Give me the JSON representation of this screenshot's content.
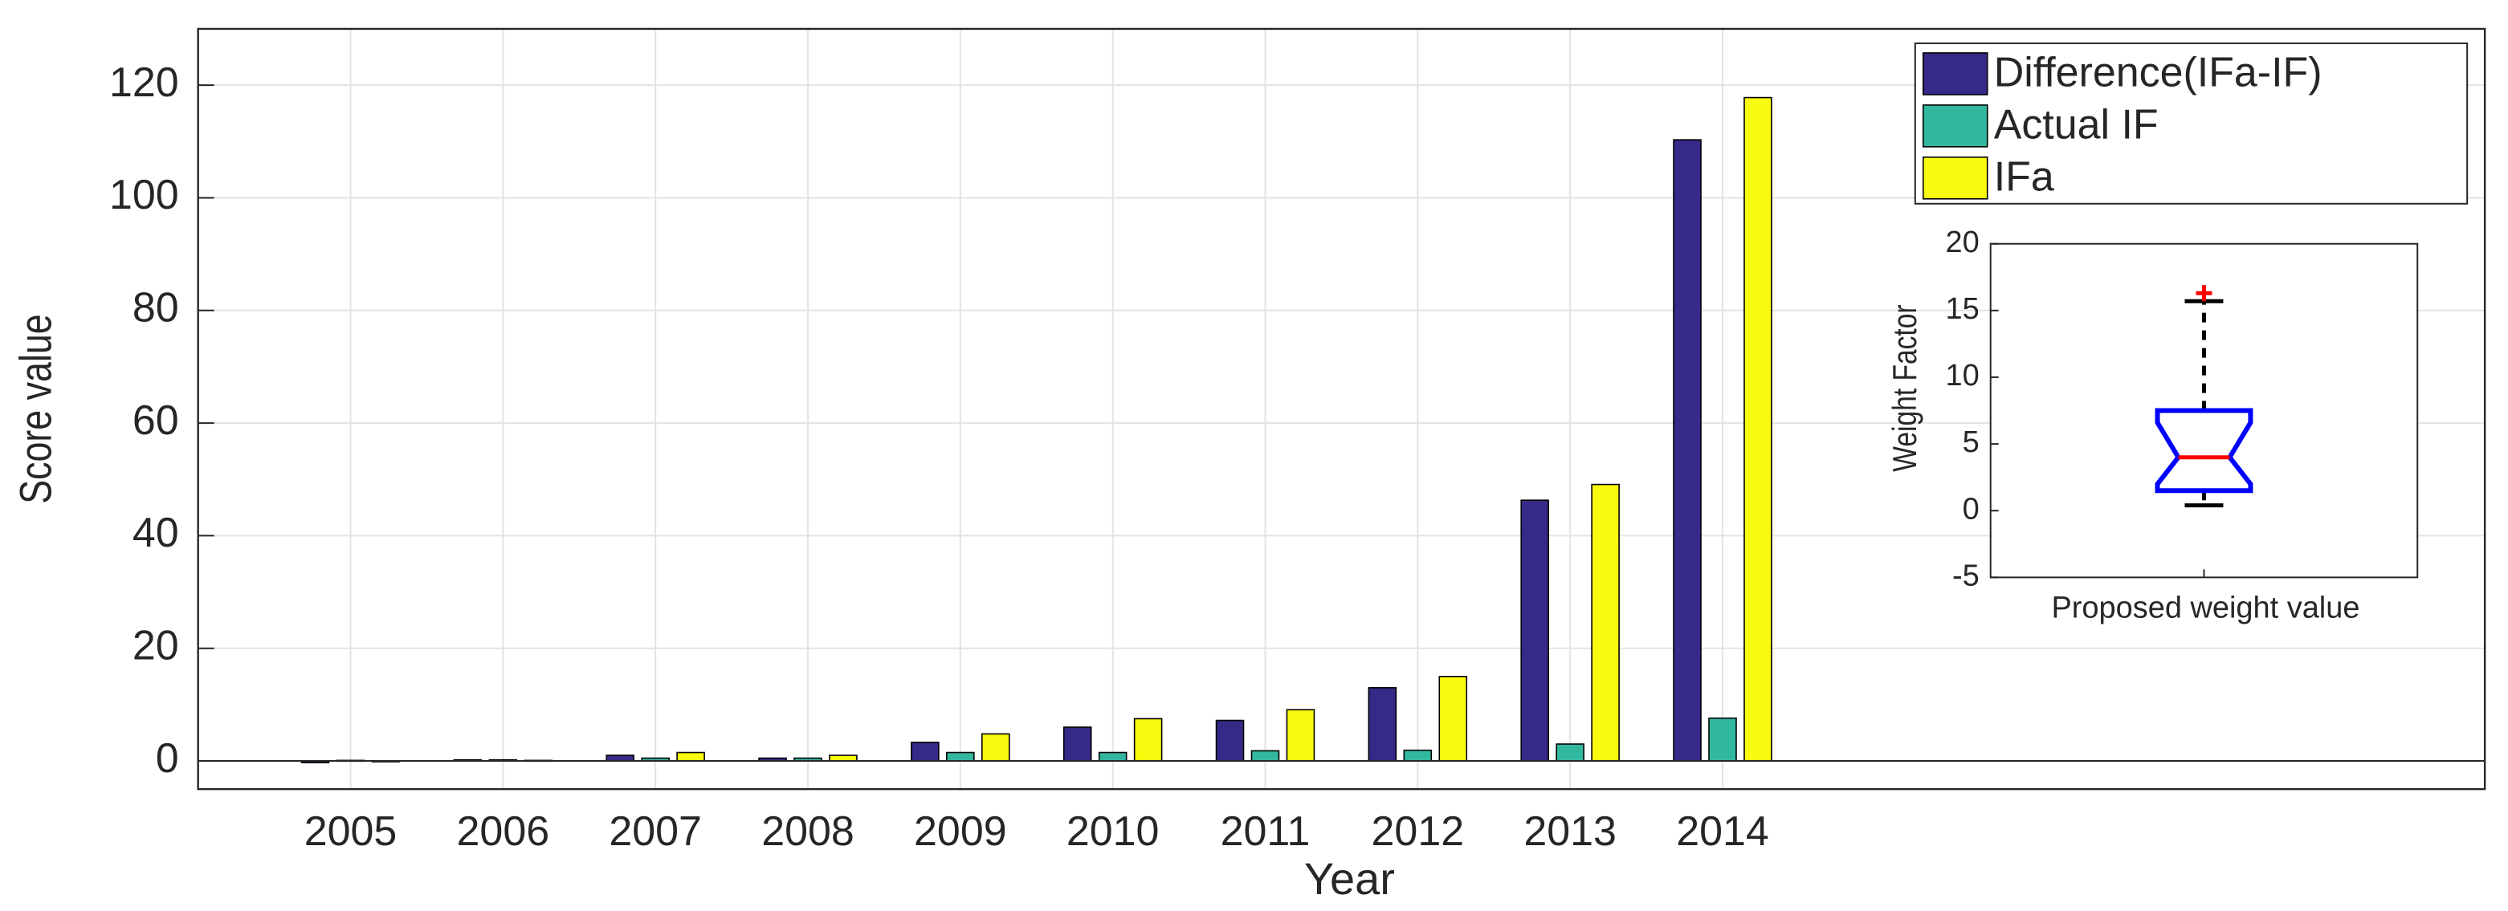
{
  "chart_data": [
    {
      "type": "bar",
      "xlabel": "Year",
      "ylabel": "Score value",
      "categories": [
        "2005",
        "2006",
        "2007",
        "2008",
        "2009",
        "2010",
        "2011",
        "2012",
        "2013",
        "2014"
      ],
      "series": [
        {
          "name": "Difference(IFa-IF)",
          "color": "#352a87",
          "values": [
            -0.3,
            0.2,
            1,
            0.5,
            3.3,
            6,
            7.2,
            13,
            46.3,
            110.3
          ]
        },
        {
          "name": "Actual IF",
          "color": "#33b8a0",
          "values": [
            0.1,
            0.2,
            0.5,
            0.5,
            1.5,
            1.5,
            1.8,
            1.9,
            3,
            7.6
          ]
        },
        {
          "name": "IFa",
          "color": "#f9fb0e",
          "values": [
            0,
            0.1,
            1.5,
            1,
            4.8,
            7.5,
            9.1,
            15,
            49.1,
            117.8
          ]
        }
      ],
      "ylim": [
        -5,
        130
      ],
      "yticks": [
        0,
        20,
        40,
        60,
        80,
        100,
        120
      ],
      "grid": true,
      "legend": "northeast"
    },
    {
      "type": "box",
      "xlabel": "Proposed weight value",
      "ylabel": "Weight Factor",
      "whisker_low": 0.4,
      "q1": 1.5,
      "notch_low": 2,
      "median": 4,
      "notch_high": 6.6,
      "q3": 7.5,
      "whisker_high": 15.7,
      "outliers": [
        16.3
      ],
      "color": "#0000ff",
      "median_color": "#ff0000",
      "outlier_color": "#ff0000",
      "ylim": [
        -5,
        20
      ],
      "yticks": [
        -5,
        0,
        5,
        10,
        15,
        20
      ]
    }
  ]
}
